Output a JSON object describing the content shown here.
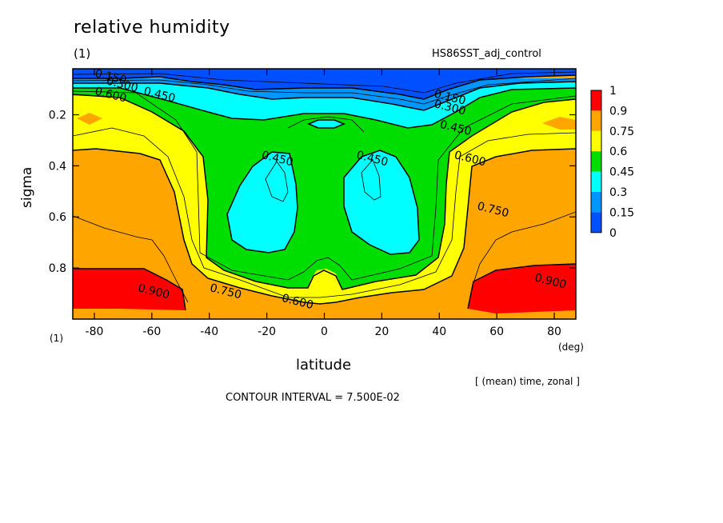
{
  "header": {
    "title": "relative humidity",
    "title_unit": "(1)",
    "run_name": "HS86SST_adj_control"
  },
  "footer": {
    "mean_note": "[ (mean) time, zonal ]",
    "contour_interval": "CONTOUR INTERVAL = 7.500E-02"
  },
  "chart_data": {
    "type": "contour",
    "title": "relative humidity",
    "xlabel": "latitude",
    "xlabel_unit": "(deg)",
    "ylabel": "sigma",
    "ylabel_unit": "(1)",
    "xlim": [
      -87.5,
      87.5
    ],
    "ylim": [
      1.0,
      0.02
    ],
    "x_ticks": [
      -80,
      -60,
      -40,
      -20,
      0,
      20,
      40,
      60,
      80
    ],
    "x_tick_labels": [
      "-80",
      "-60",
      "-40",
      "-20",
      "0",
      "20",
      "40",
      "60",
      "80"
    ],
    "y_ticks": [
      0.2,
      0.4,
      0.6,
      0.8
    ],
    "y_tick_labels": [
      "0.2",
      "0.4",
      "0.6",
      "0.8"
    ],
    "contour_interval": 0.075,
    "levels": [
      0,
      0.15,
      0.3,
      0.45,
      0.6,
      0.75,
      0.9,
      1
    ],
    "colorbar": {
      "labels": [
        "1",
        "0.9",
        "0.75",
        "0.6",
        "0.45",
        "0.3",
        "0.15",
        "0"
      ],
      "colors": [
        "#ff0000",
        "#ffa500",
        "#ffff00",
        "#00dd00",
        "#00ffff",
        "#0096ff",
        "#0050ff"
      ]
    },
    "contour_labels": [
      {
        "text": "0.150",
        "x": -80,
        "y": 0.05
      },
      {
        "text": "0.300",
        "x": -76,
        "y": 0.08
      },
      {
        "text": "0.600",
        "x": -80,
        "y": 0.12
      },
      {
        "text": "0.450",
        "x": -63,
        "y": 0.12
      },
      {
        "text": "0.150",
        "x": 38,
        "y": 0.13
      },
      {
        "text": "0.300",
        "x": 38,
        "y": 0.17
      },
      {
        "text": "0.450",
        "x": 40,
        "y": 0.25
      },
      {
        "text": "0.600",
        "x": 45,
        "y": 0.37
      },
      {
        "text": "0.750",
        "x": 53,
        "y": 0.57
      },
      {
        "text": "0.450",
        "x": -22,
        "y": 0.37
      },
      {
        "text": "0.450",
        "x": 11,
        "y": 0.37
      },
      {
        "text": "0.900",
        "x": -65,
        "y": 0.89
      },
      {
        "text": "0.750",
        "x": -40,
        "y": 0.89
      },
      {
        "text": "0.600",
        "x": -15,
        "y": 0.93
      },
      {
        "text": "0.900",
        "x": 73,
        "y": 0.85
      }
    ]
  }
}
